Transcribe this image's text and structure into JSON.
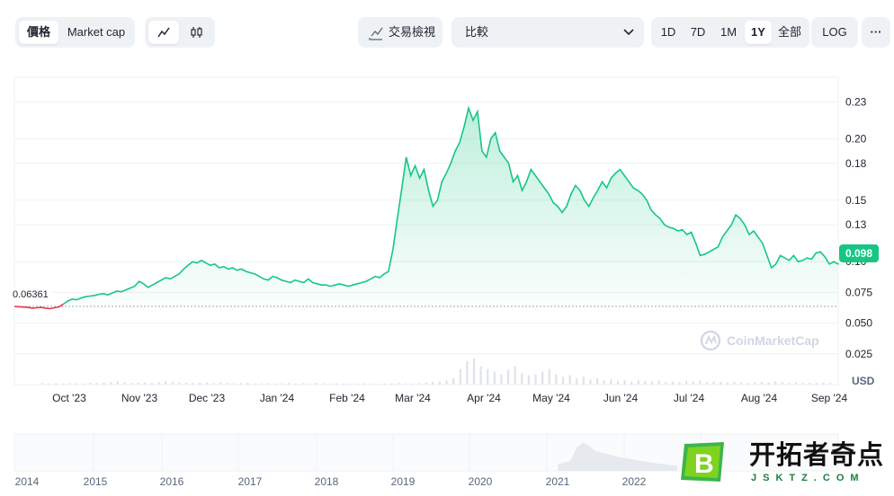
{
  "toolbar": {
    "price_label": "價格",
    "marketcap_label": "Market cap",
    "line_icon": "line-chart-icon",
    "candle_icon": "candlestick-icon",
    "trading_view_label": "交易檢視",
    "trading_view_icon": "chart-trend-icon",
    "compare_label": "比較",
    "compare_icon": "chevron-down-icon",
    "ranges": [
      "1D",
      "7D",
      "1M",
      "1Y",
      "全部"
    ],
    "active_range": "1Y",
    "log_label": "LOG",
    "more_label": "···"
  },
  "chart_data": {
    "type": "area",
    "x_ticks": [
      "Oct '23",
      "Nov '23",
      "Dec '23",
      "Jan '24",
      "Feb '24",
      "Mar '24",
      "Apr '24",
      "May '24",
      "Jun '24",
      "Jul '24",
      "Aug '24",
      "Sep '24"
    ],
    "y_ticks": [
      "0.23",
      "0.20",
      "0.18",
      "0.15",
      "0.13",
      "0.10",
      "0.075",
      "0.050",
      "0.025"
    ],
    "ylim": [
      0,
      0.25
    ],
    "ylabel": "USD",
    "start_value": "0.06361",
    "current_value": "0.098",
    "price_series": [
      0.0636,
      0.0633,
      0.0631,
      0.0628,
      0.0622,
      0.0625,
      0.0628,
      0.0622,
      0.0618,
      0.0625,
      0.0632,
      0.0655,
      0.068,
      0.0695,
      0.069,
      0.0705,
      0.0715,
      0.072,
      0.0725,
      0.0735,
      0.074,
      0.073,
      0.0745,
      0.076,
      0.0755,
      0.077,
      0.0785,
      0.08,
      0.084,
      0.082,
      0.079,
      0.081,
      0.083,
      0.085,
      0.087,
      0.086,
      0.088,
      0.09,
      0.094,
      0.097,
      0.1,
      0.099,
      0.101,
      0.099,
      0.097,
      0.098,
      0.095,
      0.096,
      0.094,
      0.095,
      0.093,
      0.094,
      0.092,
      0.091,
      0.09,
      0.088,
      0.086,
      0.085,
      0.088,
      0.087,
      0.085,
      0.084,
      0.083,
      0.085,
      0.084,
      0.083,
      0.086,
      0.083,
      0.082,
      0.081,
      0.081,
      0.08,
      0.081,
      0.082,
      0.081,
      0.08,
      0.081,
      0.082,
      0.083,
      0.084,
      0.086,
      0.088,
      0.087,
      0.09,
      0.092,
      0.11,
      0.135,
      0.16,
      0.185,
      0.17,
      0.178,
      0.168,
      0.175,
      0.158,
      0.145,
      0.15,
      0.165,
      0.172,
      0.18,
      0.19,
      0.197,
      0.21,
      0.225,
      0.215,
      0.222,
      0.19,
      0.185,
      0.2,
      0.205,
      0.19,
      0.185,
      0.18,
      0.165,
      0.17,
      0.158,
      0.165,
      0.175,
      0.17,
      0.165,
      0.16,
      0.155,
      0.148,
      0.145,
      0.14,
      0.145,
      0.155,
      0.162,
      0.158,
      0.15,
      0.145,
      0.152,
      0.158,
      0.165,
      0.16,
      0.168,
      0.172,
      0.175,
      0.17,
      0.165,
      0.16,
      0.158,
      0.155,
      0.15,
      0.142,
      0.138,
      0.135,
      0.13,
      0.128,
      0.127,
      0.125,
      0.126,
      0.122,
      0.124,
      0.115,
      0.105,
      0.106,
      0.108,
      0.11,
      0.112,
      0.12,
      0.125,
      0.13,
      0.138,
      0.135,
      0.13,
      0.122,
      0.125,
      0.12,
      0.115,
      0.105,
      0.095,
      0.098,
      0.105,
      0.103,
      0.101,
      0.105,
      0.1,
      0.101,
      0.103,
      0.102,
      0.107,
      0.108,
      0.104,
      0.098,
      0.1,
      0.098
    ],
    "volume_series": [
      0.03,
      0.02,
      0.025,
      0.02,
      0.03,
      0.025,
      0.02,
      0.035,
      0.03,
      0.04,
      0.05,
      0.06,
      0.04,
      0.03,
      0.035,
      0.04,
      0.03,
      0.045,
      0.06,
      0.05,
      0.04,
      0.035,
      0.03,
      0.04,
      0.035,
      0.03,
      0.04,
      0.03,
      0.025,
      0.03,
      0.035,
      0.02,
      0.025,
      0.03,
      0.02,
      0.025,
      0.03,
      0.02,
      0.025,
      0.02,
      0.03,
      0.025,
      0.02,
      0.025,
      0.02,
      0.015,
      0.02,
      0.025,
      0.02,
      0.015,
      0.02,
      0.025,
      0.03,
      0.025,
      0.02,
      0.03,
      0.04,
      0.05,
      0.06,
      0.08,
      0.12,
      0.3,
      0.45,
      0.5,
      0.35,
      0.3,
      0.25,
      0.2,
      0.28,
      0.35,
      0.22,
      0.18,
      0.2,
      0.25,
      0.3,
      0.2,
      0.15,
      0.18,
      0.12,
      0.15,
      0.1,
      0.12,
      0.08,
      0.1,
      0.07,
      0.09,
      0.06,
      0.08,
      0.07,
      0.06,
      0.08,
      0.05,
      0.06,
      0.05,
      0.07,
      0.06,
      0.08,
      0.05,
      0.06,
      0.05,
      0.04,
      0.05,
      0.04,
      0.03,
      0.04,
      0.05,
      0.04,
      0.06,
      0.05,
      0.03,
      0.04,
      0.03,
      0.035,
      0.03,
      0.04,
      0.03
    ],
    "watermark": "CoinMarketCap"
  },
  "navigator": {
    "years": [
      "2014",
      "2015",
      "2016",
      "2017",
      "2018",
      "2019",
      "2020",
      "2021",
      "2022"
    ]
  },
  "brand": {
    "cn": "开拓者奇点",
    "en": "JSKTZ.COM",
    "logo_letter": "B"
  },
  "colors": {
    "up": "#16c784",
    "down": "#ea3943",
    "grid": "#eef0f3",
    "text_secondary": "#58667e"
  }
}
